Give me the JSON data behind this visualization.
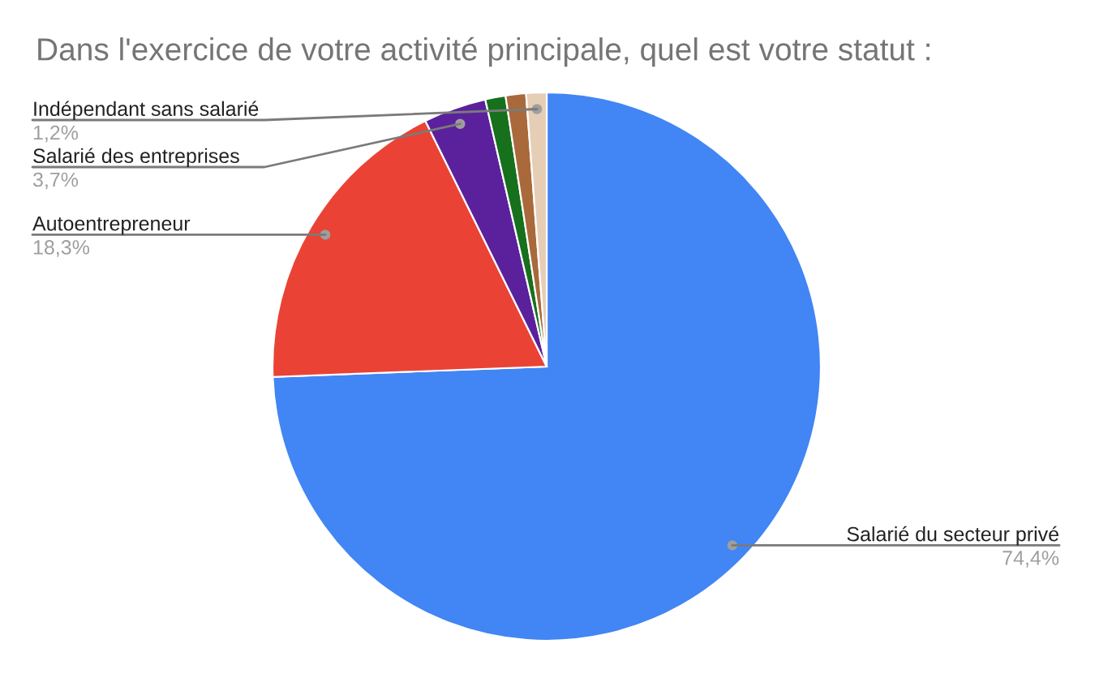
{
  "chart_data": {
    "type": "pie",
    "title": "Dans l'exercice de votre activité principale, quel est votre statut :",
    "categories": [
      "Salarié du secteur privé",
      "Autoentrepreneur",
      "Salarié des entreprises",
      null,
      null,
      "Indépendant sans salarié"
    ],
    "values": [
      74.4,
      18.3,
      3.7,
      1.2,
      1.2,
      1.2
    ],
    "value_labels": [
      "74,4%",
      "18,3%",
      "3,7%",
      null,
      null,
      "1,2%"
    ],
    "colors": [
      "#4285f4",
      "#ea4335",
      "#5b219c",
      "#17701c",
      "#a9693b",
      "#e6cdb6"
    ]
  }
}
